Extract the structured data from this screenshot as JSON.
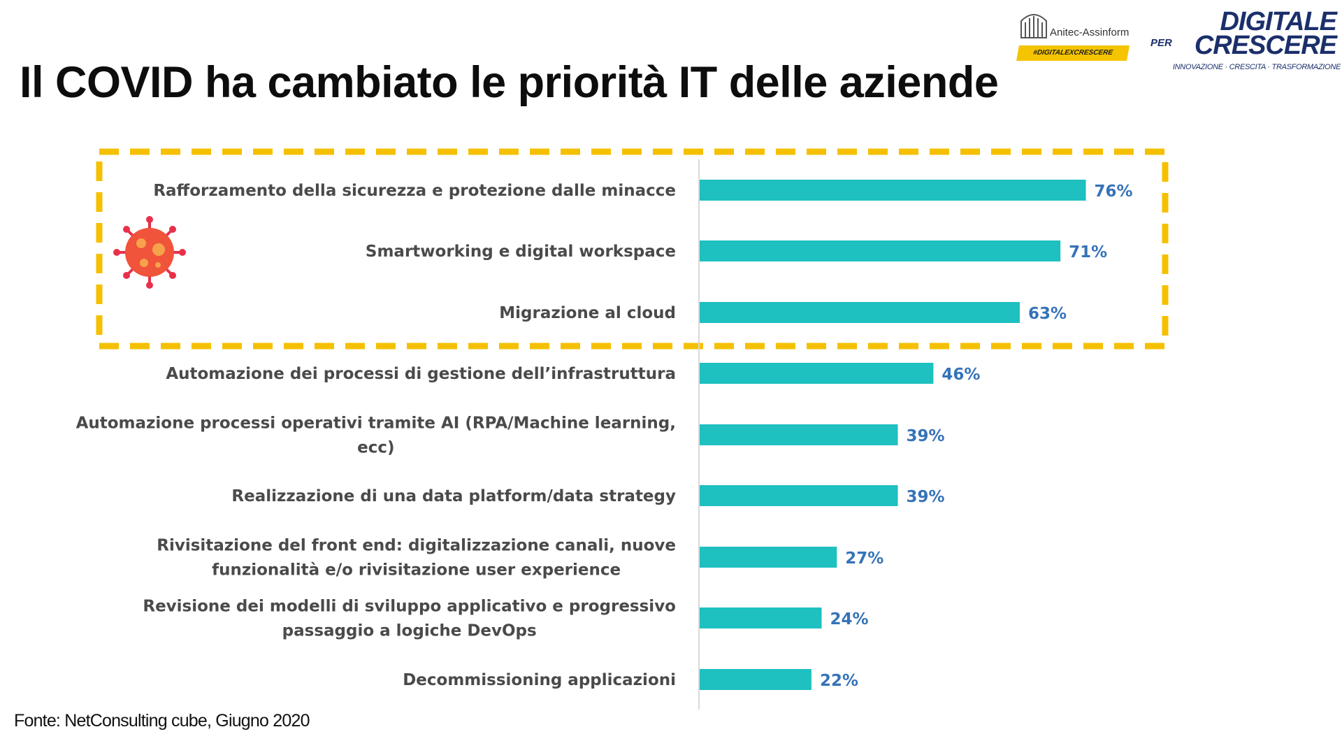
{
  "slide": {
    "title": "Il COVID ha cambiato le priorità IT delle aziende",
    "source": "Fonte: NetConsulting cube, Giugno  2020"
  },
  "logos": {
    "anitec": {
      "name": "Anitec-Assinform",
      "hashtag": "#DIGITALEXCRESCERE"
    },
    "digitale": {
      "line1": "DIGITALE",
      "per": "PER",
      "line2": "CRESCERE",
      "tagline": "INNOVAZIONE · CRESCITA · TRASFORMAZIONE"
    }
  },
  "highlight": {
    "icon": "coronavirus-icon",
    "border_color": "#f5c000"
  },
  "colors": {
    "bar": "#1ec0c0",
    "value": "#3673b8",
    "label": "#4a4a4a"
  },
  "chart_data": {
    "type": "bar",
    "orientation": "horizontal",
    "categories": [
      [
        "Rafforzamento della sicurezza e protezione dalle minacce"
      ],
      [
        "Smartworking e digital workspace"
      ],
      [
        "Migrazione al cloud"
      ],
      [
        "Automazione dei processi di gestione dell’infrastruttura"
      ],
      [
        "Automazione processi operativi tramite AI (RPA/Machine learning,",
        "ecc)"
      ],
      [
        "Realizzazione di una data platform/data strategy"
      ],
      [
        "Rivisitazione del front end: digitalizzazione canali, nuove",
        "funzionalità e/o rivisitazione user experience"
      ],
      [
        "Revisione dei modelli di sviluppo applicativo e progressivo",
        "passaggio a logiche DevOps"
      ],
      [
        "Decommissioning applicazioni"
      ]
    ],
    "values": [
      76,
      71,
      63,
      46,
      39,
      39,
      27,
      24,
      22
    ],
    "value_labels": [
      "76%",
      "71%",
      "63%",
      "46%",
      "39%",
      "39%",
      "27%",
      "24%",
      "22%"
    ],
    "highlighted_categories": [
      0,
      1,
      2
    ],
    "xlim": [
      0,
      100
    ],
    "grid": false,
    "legend": "none"
  }
}
